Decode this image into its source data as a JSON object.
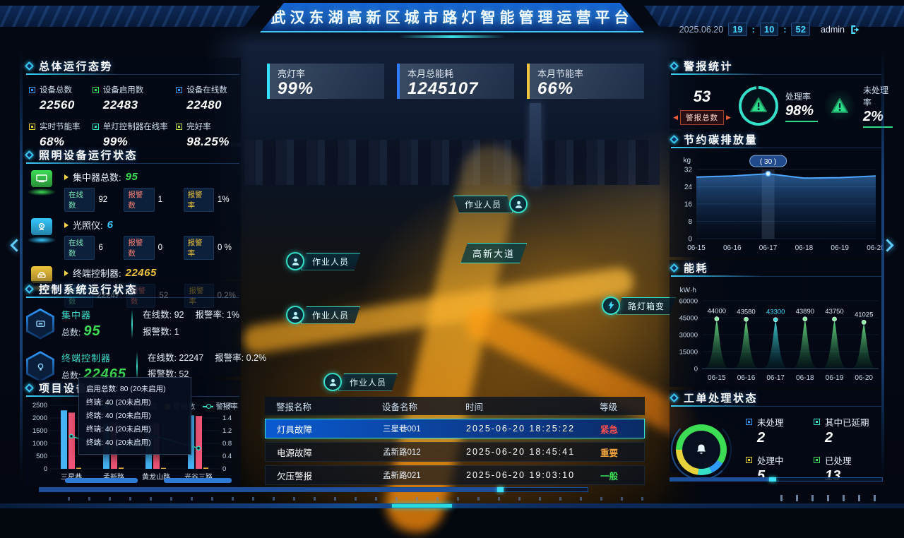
{
  "header": {
    "title": "武汉东湖高新区城市路灯智能管理运营平台",
    "date": "2025.06.20",
    "hh": "19",
    "mm": "10",
    "ss": "52",
    "user": "admin"
  },
  "kpis": {
    "items": [
      {
        "label": "亮灯率",
        "value": "99%",
        "color": "#35e0ff"
      },
      {
        "label": "本月总能耗",
        "value": "1245107",
        "color": "#2e7bff"
      },
      {
        "label": "本月节能率",
        "value": "66%",
        "color": "#f0c43c"
      }
    ]
  },
  "overall": {
    "title": "总体运行态势",
    "items": [
      {
        "label": "设备总数",
        "value": "22560",
        "color": "#2e9bff"
      },
      {
        "label": "设备启用数",
        "value": "22483",
        "color": "#3ddc55"
      },
      {
        "label": "设备在线数",
        "value": "22480",
        "color": "#2e9bff"
      },
      {
        "label": "实时节能率",
        "value": "68%",
        "color": "#e8d23b"
      },
      {
        "label": "单灯控制器在线率",
        "value": "99%",
        "color": "#35e0c9"
      },
      {
        "label": "完好率",
        "value": "98.25%",
        "color": "#b8e34a"
      }
    ]
  },
  "lighting": {
    "title": "照明设备运行状态",
    "pill_labels": {
      "online": "在线数",
      "alarm": "报警数",
      "rate": "报警率"
    },
    "rows": [
      {
        "name": "集中器总数:",
        "total": "95",
        "color": "#3ddc55",
        "online": "92",
        "alarm": "1",
        "rate": "1%"
      },
      {
        "name": "光照仪:",
        "total": "6",
        "color": "#35c8ff",
        "online": "6",
        "alarm": "0",
        "rate": "0 %"
      },
      {
        "name": "终端控制器:",
        "total": "22465",
        "color": "#f0c43c",
        "online": "22247",
        "alarm": "52",
        "rate": "0.2%"
      }
    ]
  },
  "control": {
    "title": "控制系统运行状态",
    "rows": [
      {
        "name": "集中器",
        "total_label": "总数:",
        "total": "95",
        "online": "在线数: 92",
        "rate": "报警率: 1%",
        "alarm": "报警数: 1"
      },
      {
        "name": "终端控制器",
        "total_label": "总数:",
        "total": "22465",
        "online": "在线数: 22247",
        "rate": "报警率: 0.2%",
        "alarm": "报警数: 52"
      }
    ]
  },
  "project": {
    "title": "项目设备统计",
    "legend": [
      {
        "label": "在线",
        "color": "#45b4f5"
      },
      {
        "label": "启用",
        "color": "#f25577"
      },
      {
        "label": "警报数",
        "color": "#e8b23c"
      },
      {
        "label": "警报率",
        "color": "#35e0c9"
      }
    ],
    "tooltip": {
      "title": "启用总数: 80 (20未启用)",
      "lines": [
        "终端: 40 (20未启用)",
        "终端: 40 (20未启用)",
        "终端: 40 (20未启用)",
        "终端: 40 (20未启用)"
      ]
    }
  },
  "map": {
    "worker_label": "作业人员",
    "road_label": "高新大道",
    "transformer_label": "路灯箱变"
  },
  "alarms": {
    "headers": [
      "警报名称",
      "设备名称",
      "时间",
      "等级"
    ],
    "rows": [
      {
        "name": "灯具故障",
        "device": "三星巷001",
        "time": "2025-06-20  18:25:22",
        "level": "紧急",
        "level_color": "#ff4d4d"
      },
      {
        "name": "电源故障",
        "device": "孟新路012",
        "time": "2025-06-20  18:45:41",
        "level": "重要",
        "level_color": "#f0a23c"
      },
      {
        "name": "欠压警报",
        "device": "孟新路021",
        "time": "2025-06-20  19:03:10",
        "level": "一般",
        "level_color": "#3ddc55"
      }
    ]
  },
  "alarm_stats": {
    "title": "警报统计",
    "total": "53",
    "total_label": "警报总数",
    "processed_label": "处理率",
    "processed": "98%",
    "processed_pct": 98,
    "unprocessed_label": "未处理率",
    "unprocessed": "2%"
  },
  "carbon": {
    "title": "节约碳排放量"
  },
  "energy": {
    "title": "能耗"
  },
  "workorder": {
    "title": "工单处理状态",
    "ring_order": [
      3,
      0,
      1,
      2
    ],
    "items": [
      {
        "label": "未处理",
        "value": "2",
        "color": "#2e9bff"
      },
      {
        "label": "其中已延期",
        "value": "2",
        "color": "#35e0c9"
      },
      {
        "label": "处理中",
        "value": "5",
        "color": "#e8d23b"
      },
      {
        "label": "已处理",
        "value": "13",
        "color": "#3ddc55"
      }
    ]
  },
  "chart_data": [
    {
      "id": "project",
      "type": "bar",
      "categories": [
        "三星巷",
        "孟新路",
        "黄龙山路",
        "光谷三路"
      ],
      "series": [
        {
          "name": "在线",
          "color": "#45b4f5",
          "values": [
            2300,
            1780,
            1760,
            2100
          ]
        },
        {
          "name": "启用",
          "color": "#f25577",
          "values": [
            2210,
            1820,
            1800,
            2080
          ]
        },
        {
          "name": "警报数",
          "color": "#e8b23c",
          "values": [
            40,
            45,
            35,
            45
          ]
        }
      ],
      "line": {
        "name": "警报率",
        "color": "#35e0c9",
        "values": [
          0.82,
          0.5,
          0.82,
          0.52
        ]
      },
      "y_left_ticks": [
        0,
        500,
        1000,
        1500,
        2000,
        2500
      ],
      "y_right_ticks": [
        0,
        0.4,
        0.8,
        1.2,
        1.4,
        1.6
      ]
    },
    {
      "id": "carbon",
      "type": "area",
      "unit": "kg",
      "x": [
        "06-15",
        "06-16",
        "06-17",
        "06-18",
        "06-19",
        "06-20"
      ],
      "values": [
        28.5,
        29,
        30,
        28,
        28.2,
        29
      ],
      "yticks": [
        0,
        8,
        16,
        24,
        32
      ],
      "highlight": {
        "index": 2,
        "label": "30"
      },
      "line_color": "#4da6ff"
    },
    {
      "id": "energy",
      "type": "spike",
      "unit": "kW·h",
      "x": [
        "06-15",
        "06-16",
        "06-17",
        "06-18",
        "06-19",
        "06-20"
      ],
      "values": [
        44000,
        43580,
        43300,
        43890,
        43750,
        41025
      ],
      "yticks": [
        0,
        15000,
        30000,
        45000,
        60000
      ],
      "highlight_index": 2,
      "color": "#46c06a",
      "highlight_color": "#2fd8d8"
    }
  ]
}
